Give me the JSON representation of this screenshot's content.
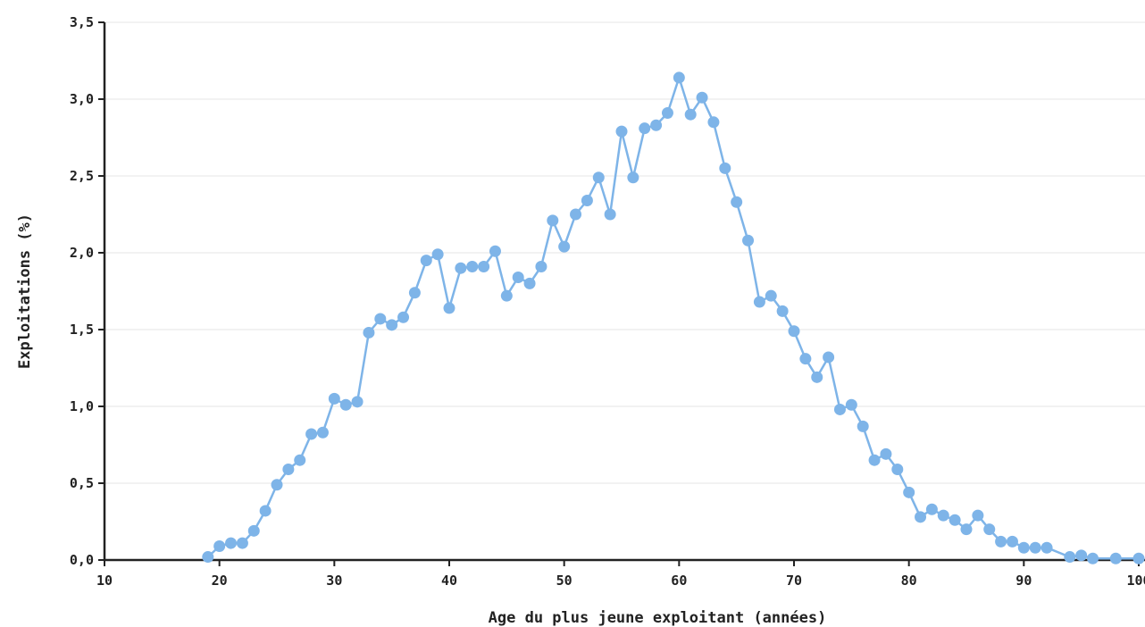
{
  "chart_data": {
    "type": "line",
    "title": "",
    "xlabel": "Age du plus jeune exploitant (années)",
    "ylabel": "Exploitations (%)",
    "xlim": [
      10,
      100
    ],
    "ylim": [
      0,
      3.5
    ],
    "x_ticks": [
      10,
      20,
      30,
      40,
      50,
      60,
      70,
      80,
      90,
      100
    ],
    "x_tick_labels": [
      "10",
      "20",
      "30",
      "40",
      "50",
      "60",
      "70",
      "80",
      "90",
      "100"
    ],
    "y_ticks": [
      0,
      0.5,
      1,
      1.5,
      2,
      2.5,
      3,
      3.5
    ],
    "y_tick_labels": [
      "0,0",
      "0,5",
      "1,0",
      "1,5",
      "2,0",
      "2,5",
      "3,0",
      "3,5"
    ],
    "grid": "horizontal",
    "color": "#7eb4e8",
    "series": [
      {
        "x": [
          19,
          20,
          21,
          22,
          23,
          24,
          25,
          26,
          27,
          28,
          29,
          30,
          31,
          32,
          33,
          34,
          35,
          36,
          37,
          38,
          39,
          40,
          41,
          42,
          43,
          44,
          45,
          46,
          47,
          48,
          49,
          50,
          51,
          52,
          53,
          54,
          55,
          56,
          57,
          58,
          59,
          60,
          61,
          62,
          63,
          64,
          65,
          66,
          67,
          68,
          69,
          70,
          71,
          72,
          73,
          74,
          75,
          76,
          77,
          78,
          79,
          80,
          81,
          82,
          83,
          84,
          85,
          86,
          87,
          88,
          89,
          90,
          91,
          92,
          94,
          95,
          96,
          98,
          100
        ],
        "y": [
          0.02,
          0.09,
          0.11,
          0.11,
          0.19,
          0.32,
          0.49,
          0.59,
          0.65,
          0.82,
          0.83,
          1.05,
          1.01,
          1.03,
          1.48,
          1.57,
          1.53,
          1.58,
          1.74,
          1.95,
          1.99,
          1.64,
          1.9,
          1.91,
          1.91,
          2.01,
          1.72,
          1.84,
          1.8,
          1.91,
          2.21,
          2.04,
          2.25,
          2.34,
          2.49,
          2.25,
          2.79,
          2.49,
          2.81,
          2.83,
          2.91,
          3.14,
          2.9,
          3.01,
          2.85,
          2.55,
          2.33,
          2.08,
          1.68,
          1.72,
          1.62,
          1.49,
          1.31,
          1.19,
          1.32,
          0.98,
          1.01,
          0.87,
          0.65,
          0.69,
          0.59,
          0.44,
          0.28,
          0.33,
          0.29,
          0.26,
          0.2,
          0.29,
          0.2,
          0.12,
          0.12,
          0.08,
          0.08,
          0.08,
          0.02,
          0.03,
          0.01,
          0.01,
          0.01
        ]
      }
    ]
  }
}
